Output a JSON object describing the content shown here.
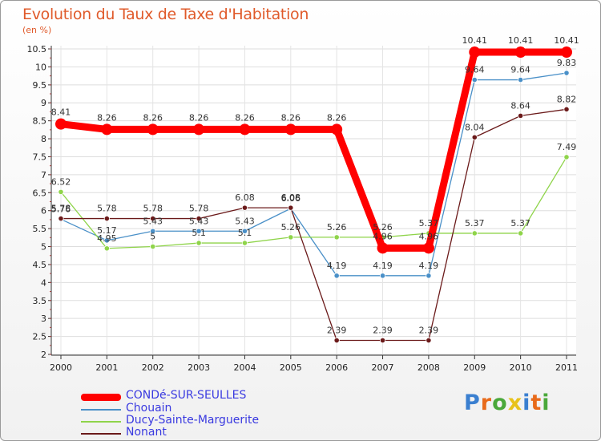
{
  "header": {
    "title": "Evolution du Taux de Taxe d'Habitation",
    "unit": "(en %)"
  },
  "chart_data": {
    "type": "line",
    "title": "Evolution du Taux de Taxe d'Habitation",
    "ylabel": "(en %)",
    "xlabel": "",
    "ylim": [
      2,
      10.5
    ],
    "yticks": [
      "2",
      "2.5",
      "3",
      "3.5",
      "4",
      "4.5",
      "5",
      "5.5",
      "6",
      "6.5",
      "7",
      "7.5",
      "8",
      "8.5",
      "9",
      "9.5",
      "10",
      "10.5"
    ],
    "categories": [
      "2000",
      "2001",
      "2002",
      "2003",
      "2004",
      "2005",
      "2006",
      "2007",
      "2008",
      "2009",
      "2010",
      "2011"
    ],
    "series": [
      {
        "name": "CONDé-SUR-SEULLES",
        "color": "#ff0000",
        "values": [
          8.41,
          8.26,
          8.26,
          8.26,
          8.26,
          8.26,
          8.26,
          4.96,
          4.96,
          10.41,
          10.41,
          10.41
        ],
        "labels": [
          "8.41",
          "8.26",
          "8.26",
          "8.26",
          "8.26",
          "8.26",
          "8.26",
          "4.96",
          "4.96",
          "10.41",
          "10.41",
          "10.41"
        ]
      },
      {
        "name": "Chouain",
        "color": "#4a90c8",
        "values": [
          5.76,
          5.17,
          5.43,
          5.43,
          5.43,
          6.06,
          4.19,
          4.19,
          4.19,
          9.64,
          9.64,
          9.83
        ],
        "labels": [
          "5.76",
          "5.17",
          "5.43",
          "5.43",
          "5.43",
          "6.06",
          "4.19",
          "4.19",
          "4.19",
          "9.64",
          "9.64",
          "9.83"
        ]
      },
      {
        "name": "Ducy-Sainte-Marguerite",
        "color": "#8fd44a",
        "values": [
          6.52,
          4.95,
          5.0,
          5.1,
          5.1,
          5.26,
          5.26,
          5.26,
          5.37,
          5.37,
          5.37,
          7.49
        ],
        "labels": [
          "6.52",
          "4.95",
          "5",
          "5.1",
          "5.1",
          "5.26",
          "5.26",
          "5.26",
          "5.37",
          "5.37",
          "5.37",
          "7.49"
        ]
      },
      {
        "name": "Nonant",
        "color": "#6b1a1a",
        "values": [
          5.78,
          5.78,
          5.78,
          5.78,
          6.08,
          6.08,
          2.39,
          2.39,
          2.39,
          8.04,
          8.64,
          8.82
        ],
        "labels": [
          "5.78",
          "5.78",
          "5.78",
          "5.78",
          "6.08",
          "6.08",
          "2.39",
          "2.39",
          "2.39",
          "8.04",
          "8.64",
          "8.82"
        ]
      }
    ],
    "legend_position": "bottom-left"
  },
  "logo": {
    "text": "Proxiti",
    "letters": [
      "P",
      "r",
      "o",
      "x",
      "i",
      "t",
      "i"
    ],
    "colors": [
      "#3a7fd0",
      "#e86a1a",
      "#4aa83a",
      "#e8c21a",
      "#3a7fd0",
      "#e86a1a",
      "#4aa83a"
    ]
  }
}
